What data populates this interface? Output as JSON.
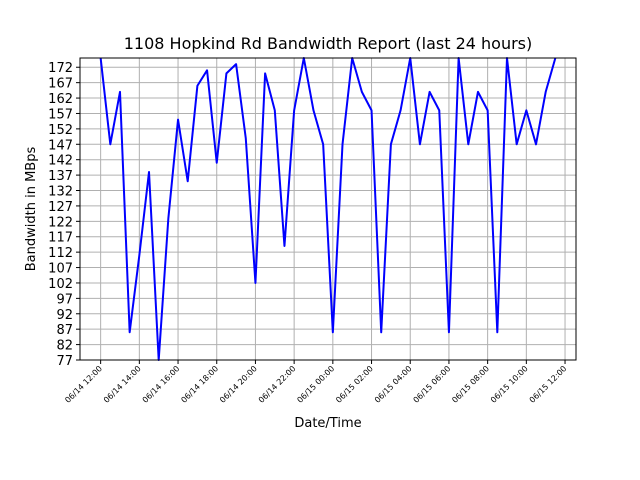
{
  "chart_data": {
    "type": "line",
    "title": "1108 Hopkind Rd Bandwidth Report (last 24 hours)",
    "xlabel": "Date/Time",
    "ylabel": "Bandwidth in MBps",
    "ylim": [
      77,
      175
    ],
    "xlim": [
      "06/14 10:56",
      "06/15 12:34"
    ],
    "grid": true,
    "line_color": "#0000ff",
    "x_ticks": [
      "06/14 12:00",
      "06/14 14:00",
      "06/14 16:00",
      "06/14 18:00",
      "06/14 20:00",
      "06/14 22:00",
      "06/15 00:00",
      "06/15 02:00",
      "06/15 04:00",
      "06/15 06:00",
      "06/15 08:00",
      "06/15 10:00",
      "06/15 12:00"
    ],
    "y_ticks": [
      77,
      82,
      87,
      92,
      97,
      102,
      107,
      112,
      117,
      122,
      127,
      132,
      137,
      142,
      147,
      152,
      157,
      162,
      167,
      172
    ],
    "series": [
      {
        "x": [
          "06/14 12:00",
          "06/14 12:30",
          "06/14 13:00",
          "06/14 13:30",
          "06/14 14:00",
          "06/14 14:30",
          "06/14 15:00",
          "06/14 15:30",
          "06/14 16:00",
          "06/14 16:30",
          "06/14 17:00",
          "06/14 17:30",
          "06/14 18:00",
          "06/14 18:30",
          "06/14 19:00",
          "06/14 19:30",
          "06/14 20:00",
          "06/14 20:30",
          "06/14 21:00",
          "06/14 21:30",
          "06/14 22:00",
          "06/14 22:30",
          "06/14 23:00",
          "06/14 23:30",
          "06/15 00:00",
          "06/15 00:30",
          "06/15 01:00",
          "06/15 01:30",
          "06/15 02:00",
          "06/15 02:30",
          "06/15 03:00",
          "06/15 03:30",
          "06/15 04:00",
          "06/15 04:30",
          "06/15 05:00",
          "06/15 05:30",
          "06/15 06:00",
          "06/15 06:30",
          "06/15 07:00",
          "06/15 07:30",
          "06/15 08:00",
          "06/15 08:30",
          "06/15 09:00",
          "06/15 09:30",
          "06/15 10:00",
          "06/15 10:30",
          "06/15 11:00",
          "06/15 11:30"
        ],
        "values": [
          175,
          147,
          164,
          86,
          111,
          138,
          77,
          123,
          155,
          135,
          166,
          171,
          141,
          170,
          173,
          149,
          102,
          170,
          158,
          114,
          158,
          175,
          158,
          147,
          86,
          147,
          175,
          164,
          158,
          86,
          147,
          158,
          175,
          147,
          164,
          158,
          86,
          175,
          147,
          164,
          158,
          86,
          175,
          147,
          158,
          147,
          164,
          175
        ]
      }
    ]
  }
}
